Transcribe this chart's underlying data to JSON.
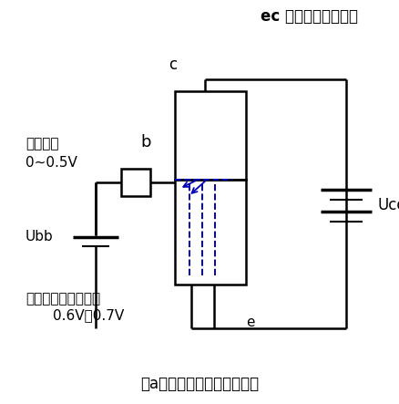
{
  "title_top": "ec 之间电阻值无穷大",
  "label_c": "c",
  "label_b": "b",
  "label_ucc": "Ucc",
  "label_ubb": "Ubb",
  "label_e": "e",
  "label_left1": "硅管为例",
  "label_left2": "0~0.5V",
  "label_bottom1": "硅管导通门限电压为",
  "label_bottom2": "0.6V～0.7V",
  "label_caption": "（a）水龙头闸门关紧的状态",
  "line_color": "#000000",
  "dashed_color": "#0000bb",
  "background": "#ffffff",
  "figsize": [
    4.38,
    4.43
  ],
  "dpi": 100
}
